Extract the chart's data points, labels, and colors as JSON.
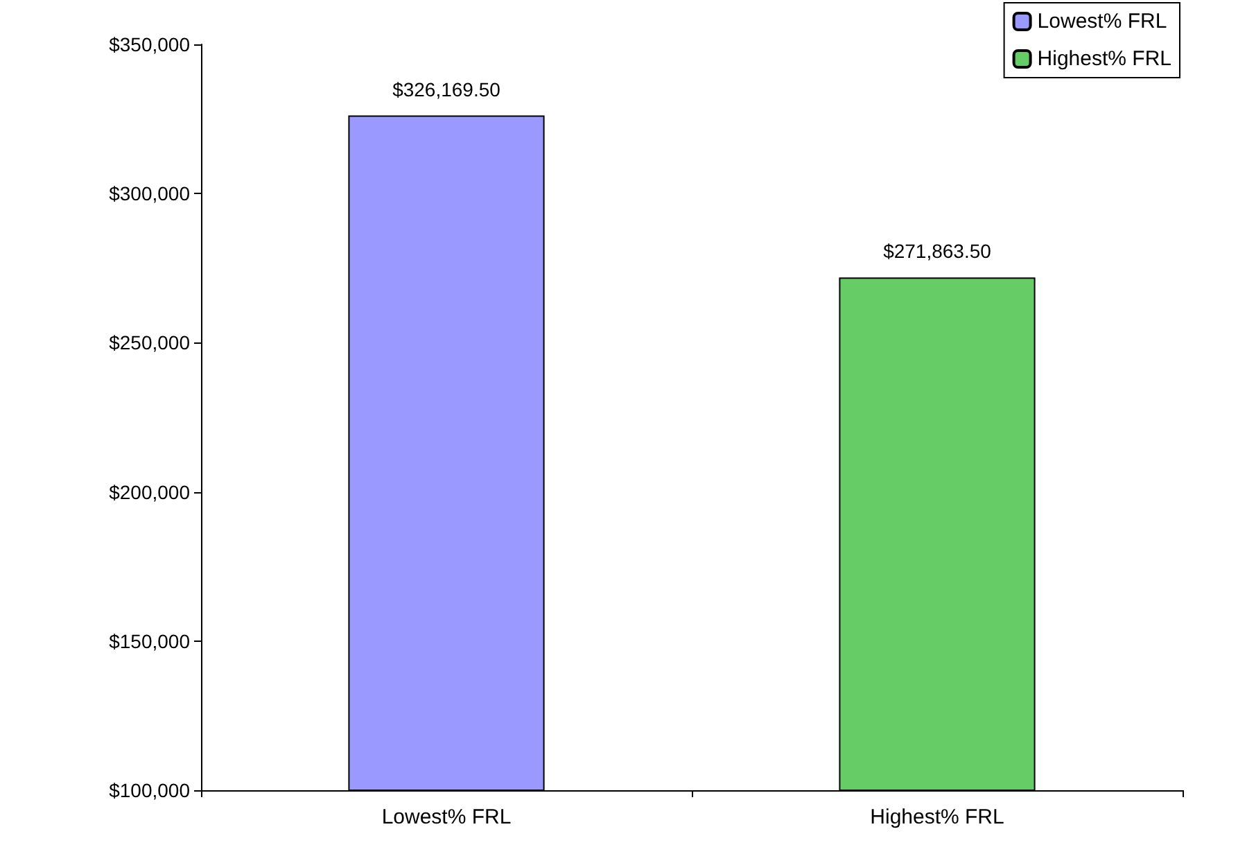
{
  "chart_data": {
    "type": "bar",
    "categories": [
      "Lowest% FRL",
      "Highest% FRL"
    ],
    "series": [
      {
        "name": "Lowest% FRL",
        "color": "#9999ff",
        "values": [
          326169.5,
          null
        ],
        "value_labels": [
          "$326,169.50",
          null
        ]
      },
      {
        "name": "Highest% FRL",
        "color": "#66cc66",
        "values": [
          null,
          271863.5
        ],
        "value_labels": [
          null,
          "$271,863.50"
        ]
      }
    ],
    "ylim": [
      100000,
      350000
    ],
    "yticks": [
      {
        "value": 100000,
        "label": "$100,000"
      },
      {
        "value": 150000,
        "label": "$150,000"
      },
      {
        "value": 200000,
        "label": "$200,000"
      },
      {
        "value": 250000,
        "label": "$250,000"
      },
      {
        "value": 300000,
        "label": "$300,000"
      },
      {
        "value": 350000,
        "label": "$350,000"
      }
    ],
    "grid": false,
    "legend": "top right"
  }
}
